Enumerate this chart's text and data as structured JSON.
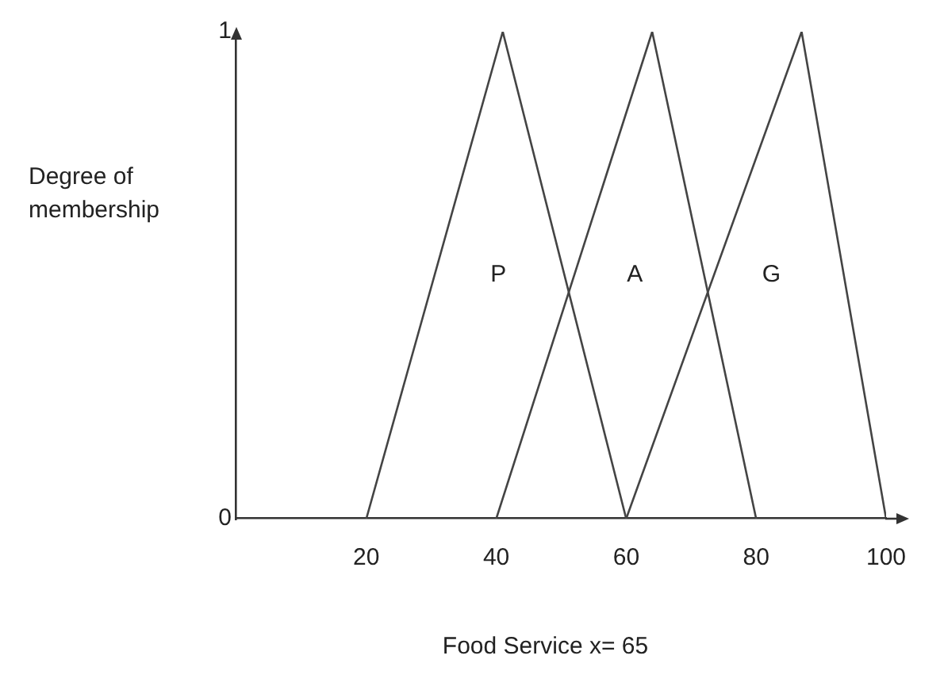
{
  "chart_data": {
    "type": "line",
    "xlabel": "Food Service x= 65",
    "ylabel": "Degree of membership",
    "xlim": [
      0,
      100
    ],
    "xticks": [
      20,
      40,
      60,
      80,
      100
    ],
    "ylim": [
      0,
      1
    ],
    "yticks": [
      0,
      1
    ],
    "grid": false,
    "legend": false,
    "marker": "none",
    "line_style": "solid",
    "series": [
      {
        "name": "P",
        "color": "#444444",
        "x": [
          20,
          41,
          60
        ],
        "values": [
          0,
          1,
          0
        ]
      },
      {
        "name": "A",
        "color": "#444444",
        "x": [
          40,
          64,
          80
        ],
        "values": [
          0,
          1,
          0
        ]
      },
      {
        "name": "G",
        "color": "#444444",
        "x": [
          60,
          87,
          100
        ],
        "values": [
          0,
          1,
          0
        ]
      }
    ]
  }
}
